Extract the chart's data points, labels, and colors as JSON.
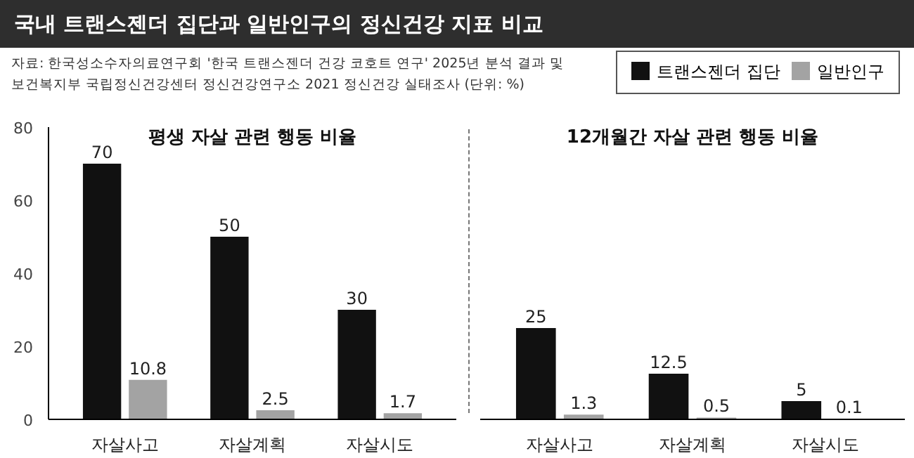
{
  "chart_data": [
    {
      "type": "bar",
      "title": "국내 트랜스젠더 집단과 일반인구의 정신건강 지표 비교",
      "subtitle": "평생 자살 관련 행동 비율",
      "annotations": [
        "자료: 한국성소수자의료연구회 '한국 트랜스젠더 건강 코호트 연구' 2025년 분석 결과 및",
        "보건복지부 국립정신건강센터 정신건강연구소 2021 정신건강 실태조사 (단위: %)"
      ],
      "categories": [
        "자살사고",
        "자살계획",
        "자살시도"
      ],
      "series": [
        {
          "color": "#111111",
          "values": [
            70,
            50,
            30
          ]
        },
        {
          "color": "#a3a3a3",
          "values": [
            10.8,
            2.5,
            1.7
          ]
        }
      ],
      "ylim": [
        0,
        80
      ],
      "yticks": [
        0,
        20,
        40,
        60,
        80
      ],
      "data_labels": true,
      "grid": false
    },
    {
      "type": "bar",
      "subtitle": "12개월간 자살 관련 행동 비율",
      "categories": [
        "자살사고",
        "자살계획",
        "자살시도"
      ],
      "series": [
        {
          "name": "트랜스젠더 집단",
          "color": "#111111",
          "values": [
            25,
            12.5,
            5
          ]
        },
        {
          "name": "일반인구",
          "color": "#a3a3a3",
          "values": [
            1.3,
            0.5,
            0.1
          ]
        }
      ],
      "ylim": [
        0,
        80
      ],
      "tick_labels": "x",
      "data_labels": true,
      "grid": false,
      "legend": "top right"
    }
  ]
}
